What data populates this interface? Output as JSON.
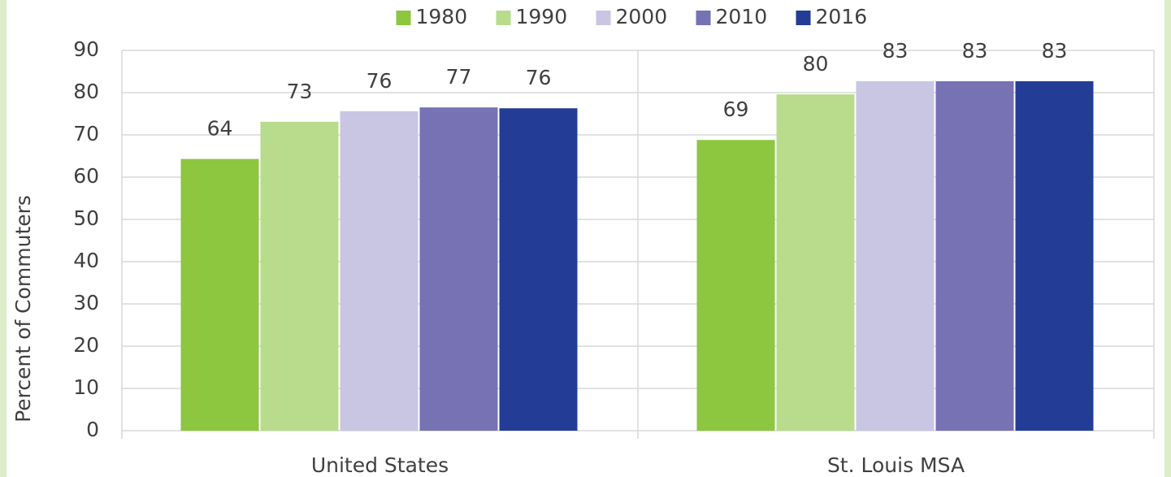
{
  "chart_data": {
    "type": "bar",
    "categories": [
      "United States",
      "St. Louis MSA"
    ],
    "series": [
      {
        "name": "1980",
        "color": "#8dc63f",
        "values": [
          64.3,
          68.8
        ],
        "value_labels": [
          "64",
          "69"
        ]
      },
      {
        "name": "1990",
        "color": "#b8dc8c",
        "values": [
          73.1,
          79.6
        ],
        "value_labels": [
          "73",
          "80"
        ]
      },
      {
        "name": "2000",
        "color": "#c9c6e3",
        "values": [
          75.6,
          82.7
        ],
        "value_labels": [
          "76",
          "83"
        ]
      },
      {
        "name": "2010",
        "color": "#7672b4",
        "values": [
          76.5,
          82.7
        ],
        "value_labels": [
          "77",
          "83"
        ]
      },
      {
        "name": "2016",
        "color": "#233d96",
        "values": [
          76.3,
          82.7
        ],
        "value_labels": [
          "76",
          "83"
        ]
      }
    ],
    "y_label": "Percent of Commuters",
    "ylim": [
      0,
      90
    ],
    "yticks": [
      0,
      10,
      20,
      30,
      40,
      50,
      60,
      70,
      80,
      90
    ],
    "grid": true,
    "legend": "top"
  }
}
